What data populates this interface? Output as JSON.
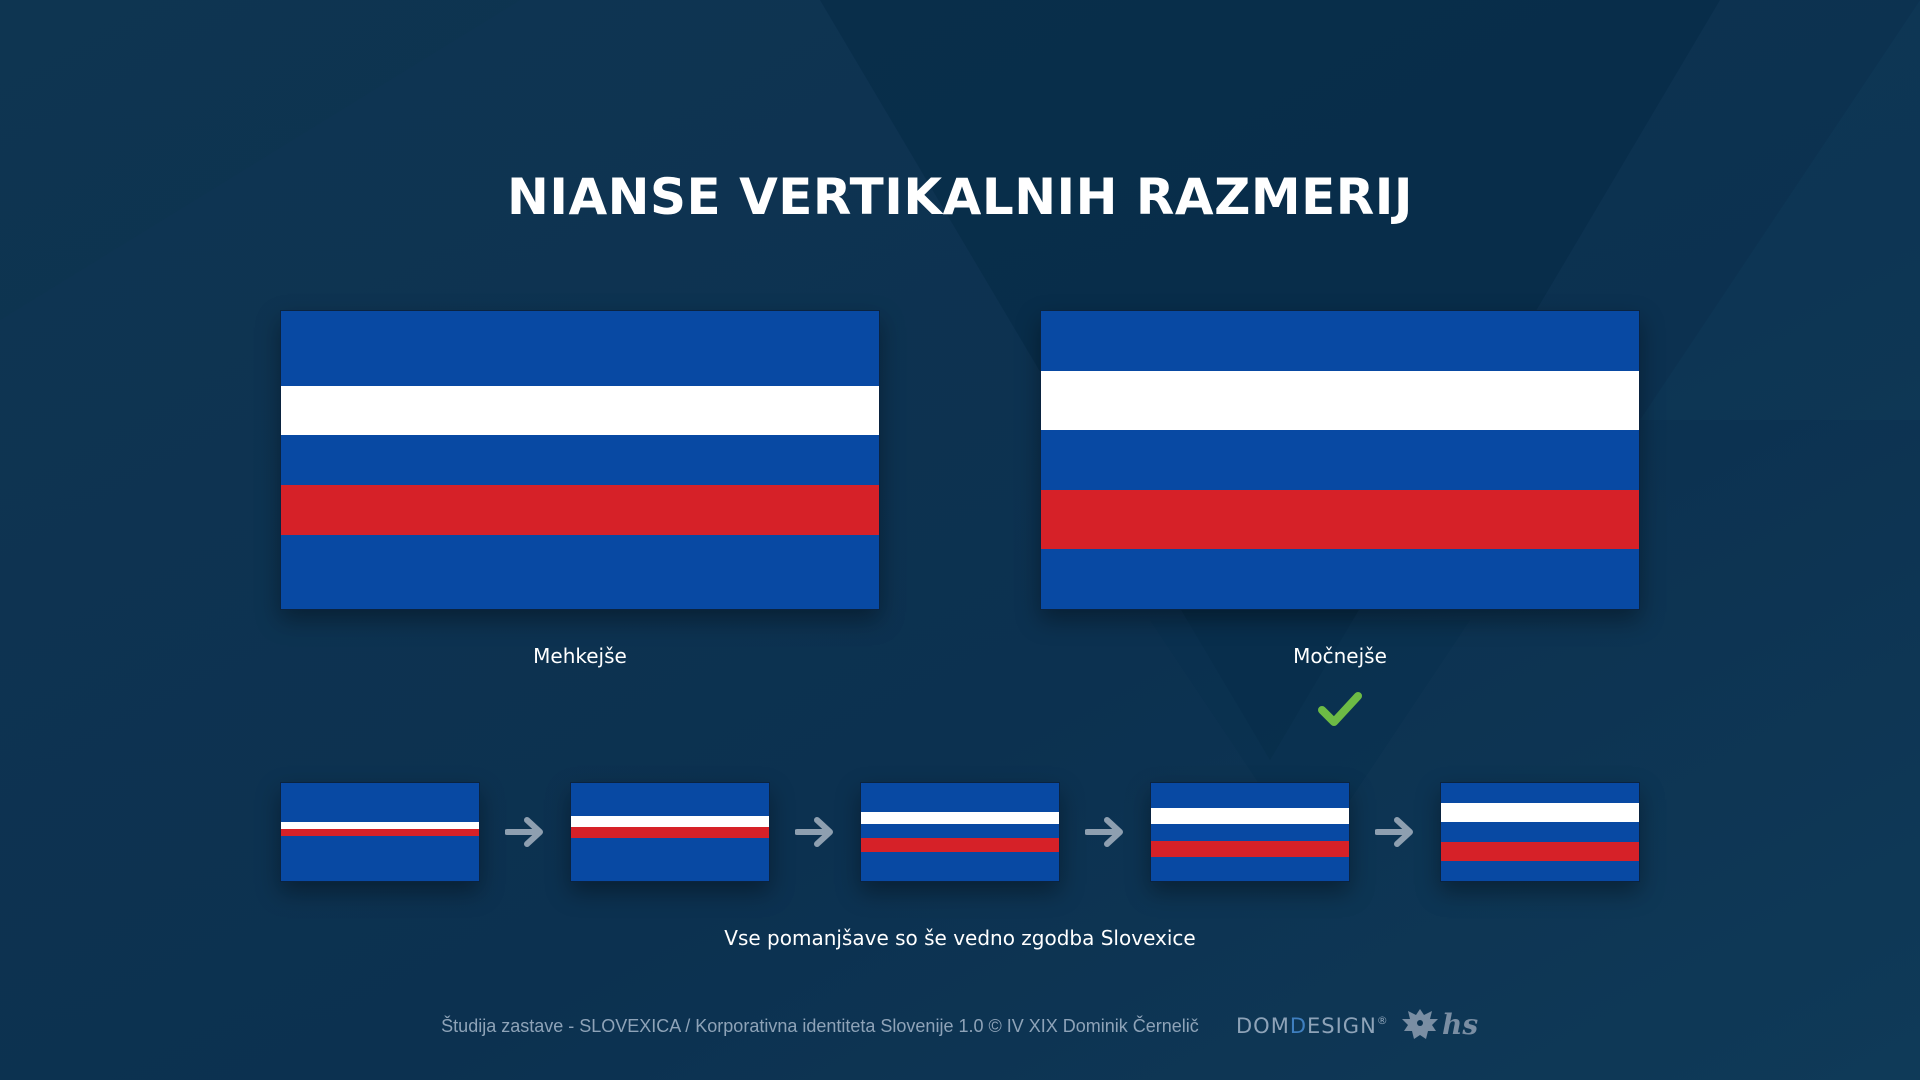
{
  "title": "NIANSE VERTIKALNIH RAZMERIJ",
  "colors": {
    "background": "#0d3350",
    "blue": "#0849a3",
    "white": "#ffffff",
    "red": "#d62128",
    "check": "#6dbb45",
    "arrow": "#8e9fb0"
  },
  "large_flags": [
    {
      "label": "Mehkejše",
      "bands": [
        {
          "color": "blue",
          "ratio": 1.5
        },
        {
          "color": "white",
          "ratio": 1
        },
        {
          "color": "blue",
          "ratio": 1
        },
        {
          "color": "red",
          "ratio": 1
        },
        {
          "color": "blue",
          "ratio": 1.5
        }
      ]
    },
    {
      "label": "Močnejše",
      "selected": true,
      "bands": [
        {
          "color": "blue",
          "ratio": 1
        },
        {
          "color": "white",
          "ratio": 1
        },
        {
          "color": "blue",
          "ratio": 1
        },
        {
          "color": "red",
          "ratio": 1
        },
        {
          "color": "blue",
          "ratio": 1
        }
      ]
    }
  ],
  "progression": [
    {
      "bands": [
        {
          "color": "blue",
          "ratio": 40
        },
        {
          "color": "white",
          "ratio": 7
        },
        {
          "color": "red",
          "ratio": 7
        },
        {
          "color": "blue",
          "ratio": 46
        }
      ]
    },
    {
      "bands": [
        {
          "color": "blue",
          "ratio": 34
        },
        {
          "color": "white",
          "ratio": 11
        },
        {
          "color": "red",
          "ratio": 11
        },
        {
          "color": "blue",
          "ratio": 44
        }
      ]
    },
    {
      "bands": [
        {
          "color": "blue",
          "ratio": 30
        },
        {
          "color": "white",
          "ratio": 12
        },
        {
          "color": "blue",
          "ratio": 14
        },
        {
          "color": "red",
          "ratio": 14
        },
        {
          "color": "blue",
          "ratio": 30
        }
      ]
    },
    {
      "bands": [
        {
          "color": "blue",
          "ratio": 25
        },
        {
          "color": "white",
          "ratio": 17
        },
        {
          "color": "blue",
          "ratio": 17
        },
        {
          "color": "red",
          "ratio": 17
        },
        {
          "color": "blue",
          "ratio": 24
        }
      ]
    },
    {
      "bands": [
        {
          "color": "blue",
          "ratio": 20
        },
        {
          "color": "white",
          "ratio": 20
        },
        {
          "color": "blue",
          "ratio": 20
        },
        {
          "color": "red",
          "ratio": 20
        },
        {
          "color": "blue",
          "ratio": 20
        }
      ]
    }
  ],
  "tagline": "Vse pomanjšave so še vedno zgodba Slovexice",
  "footer": {
    "text": "Študija zastave - SLOVEXICA / Korporativna identiteta Slovenije 1.0 © IV XIX Dominik Černelič",
    "logo_prefix": "DOM",
    "logo_accent": "D",
    "logo_suffix": "ESIGN",
    "logo_mark": "®",
    "hs_mark": "hs"
  }
}
